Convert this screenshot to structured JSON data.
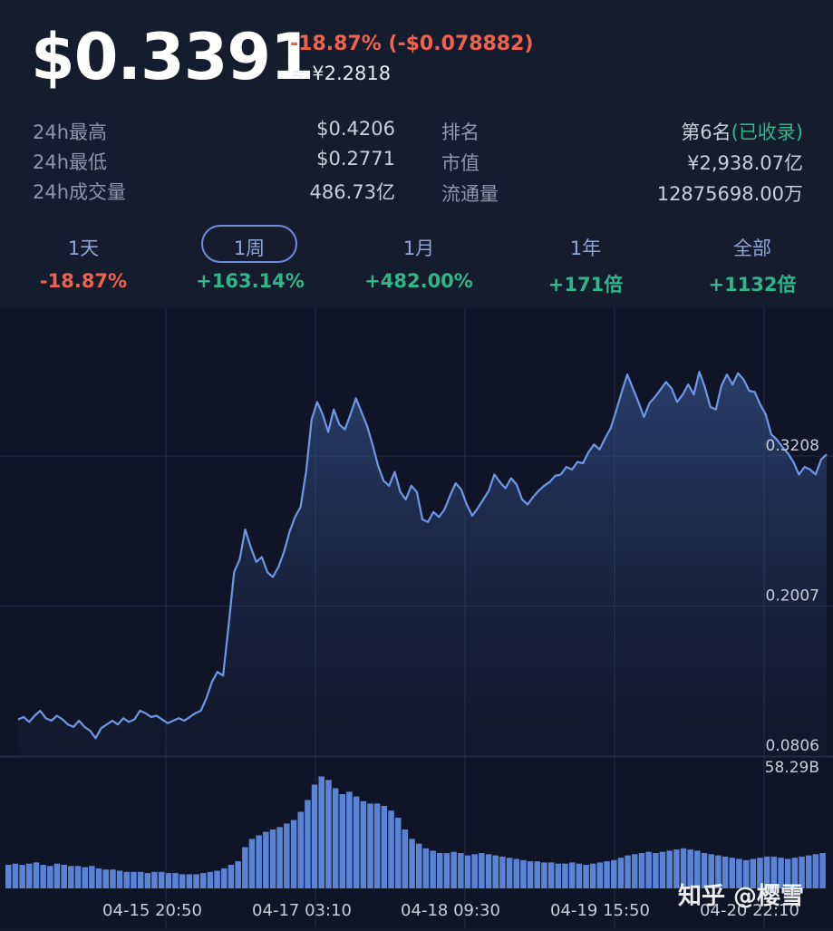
{
  "header": {
    "price": "$0.3391",
    "change": "-18.87% (-$0.078882)",
    "cny": "≈ ¥2.2818"
  },
  "stats": {
    "high_label": "24h最高",
    "high_value": "$0.4206",
    "low_label": "24h最低",
    "low_value": "$0.2771",
    "volume_label": "24h成交量",
    "volume_value": "486.73亿",
    "rank_label": "排名",
    "rank_value": "第6名",
    "rank_note": "(已收录)",
    "mcap_label": "市值",
    "mcap_value": "¥2,938.07亿",
    "supply_label": "流通量",
    "supply_value": "12875698.00万"
  },
  "periods": [
    {
      "name": "1天",
      "pct": "-18.87%"
    },
    {
      "name": "1周",
      "pct": "+163.14%"
    },
    {
      "name": "1月",
      "pct": "+482.00%"
    },
    {
      "name": "1年",
      "pct": "+171倍"
    },
    {
      "name": "全部",
      "pct": "+1132倍"
    }
  ],
  "watermark": "知乎 @樱雪",
  "colors": {
    "up": "#31b68a",
    "down": "#f0624d",
    "line": "#6f97e6",
    "bar": "#5a83d6"
  },
  "chart_data": {
    "type": "line",
    "ylim": [
      0.08,
      0.41
    ],
    "y_ticks": [
      "0.3208",
      "0.2007",
      "0.0806"
    ],
    "volume_max_label": "58.29B",
    "x_ticks": [
      "04-15 20:50",
      "04-17 03:10",
      "04-18 09:30",
      "04-19 15:50",
      "04-20 22:10"
    ],
    "series": [
      {
        "values": [
          0.11,
          0.112,
          0.108,
          0.113,
          0.117,
          0.111,
          0.109,
          0.113,
          0.11,
          0.106,
          0.104,
          0.109,
          0.104,
          0.101,
          0.095,
          0.103,
          0.106,
          0.109,
          0.106,
          0.111,
          0.108,
          0.11,
          0.117,
          0.115,
          0.112,
          0.113,
          0.11,
          0.107,
          0.109,
          0.111,
          0.109,
          0.112,
          0.115,
          0.117,
          0.127,
          0.14,
          0.148,
          0.145,
          0.185,
          0.228,
          0.238,
          0.262,
          0.248,
          0.236,
          0.24,
          0.228,
          0.224,
          0.232,
          0.244,
          0.26,
          0.272,
          0.28,
          0.308,
          0.35,
          0.364,
          0.354,
          0.34,
          0.358,
          0.346,
          0.342,
          0.354,
          0.367,
          0.356,
          0.345,
          0.33,
          0.313,
          0.301,
          0.297,
          0.308,
          0.292,
          0.286,
          0.297,
          0.292,
          0.27,
          0.268,
          0.276,
          0.272,
          0.278,
          0.289,
          0.299,
          0.294,
          0.282,
          0.273,
          0.279,
          0.286,
          0.293,
          0.306,
          0.3,
          0.295,
          0.303,
          0.298,
          0.286,
          0.282,
          0.288,
          0.293,
          0.297,
          0.3,
          0.305,
          0.306,
          0.312,
          0.31,
          0.316,
          0.315,
          0.324,
          0.33,
          0.326,
          0.335,
          0.343,
          0.357,
          0.372,
          0.386,
          0.375,
          0.364,
          0.352,
          0.363,
          0.368,
          0.374,
          0.38,
          0.375,
          0.364,
          0.37,
          0.378,
          0.37,
          0.388,
          0.376,
          0.36,
          0.358,
          0.377,
          0.386,
          0.378,
          0.387,
          0.382,
          0.373,
          0.372,
          0.362,
          0.354,
          0.338,
          0.334,
          0.328,
          0.323,
          0.316,
          0.306,
          0.312,
          0.31,
          0.306,
          0.318,
          0.322
        ]
      }
    ],
    "volume": [
      0.2,
      0.21,
      0.2,
      0.21,
      0.22,
      0.2,
      0.19,
      0.21,
      0.2,
      0.19,
      0.19,
      0.18,
      0.19,
      0.17,
      0.16,
      0.16,
      0.15,
      0.14,
      0.14,
      0.14,
      0.13,
      0.14,
      0.14,
      0.13,
      0.13,
      0.12,
      0.12,
      0.12,
      0.13,
      0.14,
      0.15,
      0.17,
      0.2,
      0.23,
      0.35,
      0.42,
      0.45,
      0.48,
      0.5,
      0.52,
      0.55,
      0.58,
      0.65,
      0.75,
      0.88,
      0.95,
      0.92,
      0.85,
      0.8,
      0.82,
      0.78,
      0.74,
      0.72,
      0.72,
      0.7,
      0.66,
      0.6,
      0.5,
      0.42,
      0.38,
      0.34,
      0.32,
      0.3,
      0.3,
      0.31,
      0.3,
      0.28,
      0.29,
      0.3,
      0.29,
      0.28,
      0.27,
      0.26,
      0.25,
      0.24,
      0.23,
      0.23,
      0.22,
      0.22,
      0.21,
      0.21,
      0.22,
      0.21,
      0.2,
      0.21,
      0.22,
      0.23,
      0.24,
      0.26,
      0.28,
      0.29,
      0.3,
      0.31,
      0.3,
      0.31,
      0.32,
      0.33,
      0.34,
      0.33,
      0.32,
      0.3,
      0.29,
      0.28,
      0.27,
      0.26,
      0.25,
      0.24,
      0.25,
      0.26,
      0.27,
      0.27,
      0.26,
      0.25,
      0.26,
      0.27,
      0.28,
      0.29,
      0.3
    ]
  }
}
